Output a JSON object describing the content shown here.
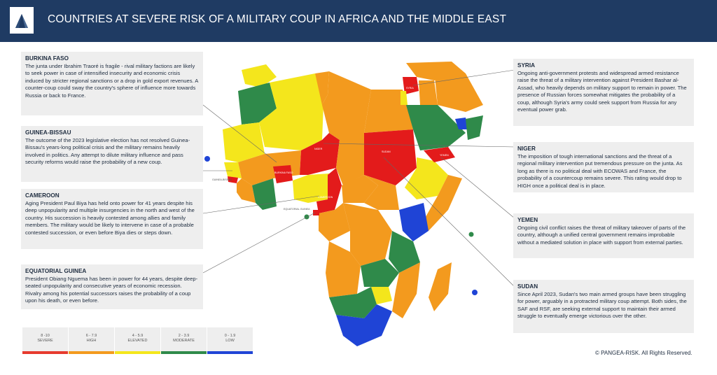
{
  "header": {
    "title": "COUNTRIES AT SEVERE RISK OF A MILITARY COUP IN AFRICA AND THE MIDDLE EAST",
    "logo_icon": "pangea-triangle-logo-icon"
  },
  "cards": {
    "burkina": {
      "title": "BURKINA FASO",
      "text": "The junta under Ibrahim Traoré is fragile - rival military factions are likely to seek power in case of intensified insecurity and economic crisis induced by stricter regional sanctions or a drop in gold export revenues. A counter-coup could sway the country's sphere of influence more towards Russia or back to France."
    },
    "guinea_bissau": {
      "title": "GUINEA-BISSAU",
      "text": "The outcome of the 2023 legislative election has not resolved Guinea-Bissau's years-long political crisis and the military remains heavily involved in politics. Any attempt to dilute military influence and pass security reforms would raise the probability of a new coup."
    },
    "cameroon": {
      "title": "CAMEROON",
      "text": "Aging President Paul Biya has held onto power for 41 years despite his deep unpopularity and multiple insurgencies in the north and west of the country. His succession is heavily contested among allies and family members. The military would be likely to intervene in case of a probable contested succession, or even before Biya dies or steps down."
    },
    "eq_guinea": {
      "title": "EQUATORIAL GUINEA",
      "text": "President Obiang Nguema has been in power for 44 years, despite deep-seated unpopularity and consecutive years of economic recession. Rivalry among his potential successors raises the probability of a coup upon his death, or even before."
    },
    "syria": {
      "title": "SYRIA",
      "text": "Ongoing anti-government protests and widespread armed resistance raise the threat of a military intervention against President Bashar al-Assad, who heavily depends on military support to remain in power. The presence of Russian forces somewhat mitigates the probability of a coup, although Syria's army could seek support from Russia for any eventual power grab."
    },
    "niger": {
      "title": "NIGER",
      "text": "The imposition of tough international sanctions and the threat of a regional military intervention put tremendous pressure on the junta. As long as there is no political deal with ECOWAS and France, the probability of a countercoup remains severe. This rating would drop to HIGH once a political deal is in place."
    },
    "yemen": {
      "title": "YEMEN",
      "text": "Ongoing civil conflict raises the threat of military takeover of parts of the country, although a unified central government remains improbable without a mediated solution in place with support from external parties."
    },
    "sudan": {
      "title": "SUDAN",
      "text": "Since April 2023, Sudan's two main armed groups have been struggling for power, arguably in a protracted military coup attempt. Both sides, the SAF and RSF, are seeking external support to maintain their armed struggle to eventually emerge victorious over the other."
    }
  },
  "map_labels": {
    "niger": "NIGER",
    "sudan": "SUDAN",
    "syria": "SYRIA",
    "yemen": "YEMEN",
    "burkina": "BURKINA FASO",
    "cameroon": "CAMEROON",
    "guinea_bissau": "GUINEA-BISSAU",
    "eq_guinea": "EQUATORIAL GUINEA"
  },
  "legend": [
    {
      "range": "8 -10",
      "level": "SEVERE",
      "color": "#e63a2e"
    },
    {
      "range": "6 - 7.9",
      "level": "HIGH",
      "color": "#f39a1e"
    },
    {
      "range": "4 - 5.9",
      "level": "ELEVATED",
      "color": "#f4e61c"
    },
    {
      "range": "2 - 3.9",
      "level": "MODERATE",
      "color": "#2f8a4a"
    },
    {
      "range": "0 - 1.9",
      "level": "LOW",
      "color": "#1f44d6"
    }
  ],
  "colors": {
    "severe": "#e31b1b",
    "high": "#f39a1e",
    "elevated": "#f4e61c",
    "moderate": "#2f8a4a",
    "low": "#1f44d6",
    "header": "#1f3b63"
  },
  "copyright": "© PANGEA-RISK. All Rights Reserved."
}
